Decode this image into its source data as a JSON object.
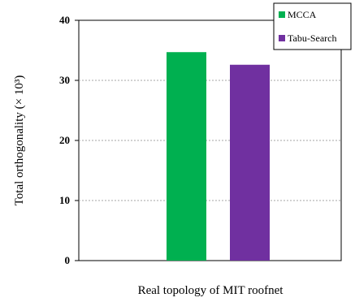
{
  "chart_data": {
    "type": "bar",
    "title": "",
    "xlabel": "Real topology of MIT roofnet",
    "ylabel": "Total orthogonality (× 10³)",
    "ylim": [
      0,
      40
    ],
    "yticks": [
      "0",
      "10",
      "20",
      "30",
      "40"
    ],
    "grid": "horizontal-dashed",
    "legend_position": "top-right",
    "categories": [
      "Real topology of MIT roofnet"
    ],
    "series": [
      {
        "name": "MCCA",
        "color": "#00b050",
        "values": [
          34.7
        ]
      },
      {
        "name": "Tabu-Search",
        "color": "#7030a0",
        "values": [
          32.6
        ]
      }
    ]
  }
}
